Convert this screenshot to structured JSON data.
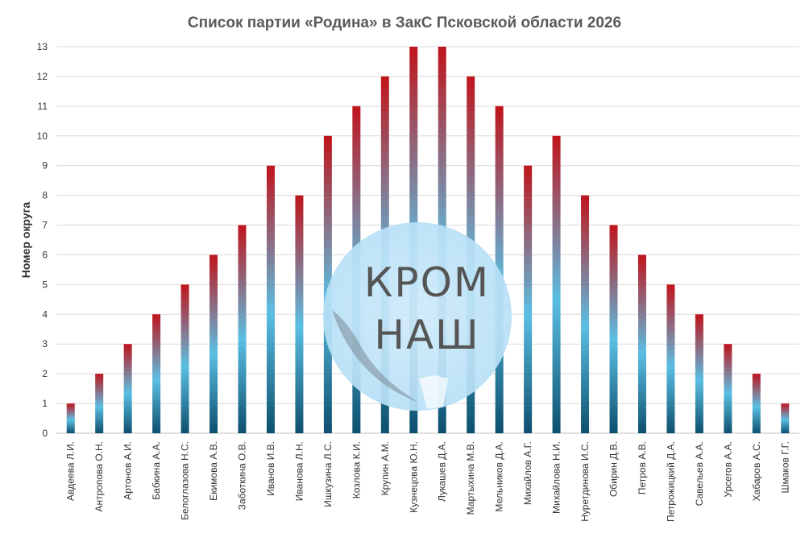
{
  "chart_data": {
    "type": "bar",
    "title": "Список партии «Родина» в ЗакС Псковской области 2026",
    "xlabel": "",
    "ylabel": "Номер округа",
    "ylim": [
      0,
      13
    ],
    "yticks": [
      0,
      1,
      2,
      3,
      4,
      5,
      6,
      7,
      8,
      9,
      10,
      11,
      12,
      13
    ],
    "grid": true,
    "categories": [
      "Авдеева Л.И.",
      "Антропова О.Н.",
      "Артонов А.И.",
      "Бабкина А.А.",
      "Белоглазова Н.С.",
      "Екимова А.В.",
      "Заботкина О.В.",
      "Иванов И.В.",
      "Иванова Л.Н.",
      "Ишкузина Л.С.",
      "Козлова К.И.",
      "Крупин А.М.",
      "Кузнецова Ю.Н.",
      "Лукашев Д.А.",
      "Мартыхина М.В.",
      "Мельников Д.А.",
      "Михайлов А.Г.",
      "Михайлова Н.И.",
      "Нуретдинова И.С.",
      "Обирин Д.В.",
      "Петров А.В.",
      "Петрожицкий Д.А.",
      "Савельев А.А.",
      "Урсегов А.А.",
      "Хабаров А.С.",
      "Шмаков Г.Г."
    ],
    "values": [
      1,
      2,
      3,
      4,
      5,
      6,
      7,
      9,
      8,
      10,
      11,
      12,
      13,
      13,
      12,
      11,
      9,
      10,
      8,
      7,
      6,
      5,
      4,
      3,
      2,
      1
    ],
    "colors": {
      "top": "#c0141b",
      "middle": "#5bbfe3",
      "bottom": "#0d4f6e"
    }
  },
  "watermark": {
    "line1": "КРОМ",
    "line2": "НАШ"
  }
}
